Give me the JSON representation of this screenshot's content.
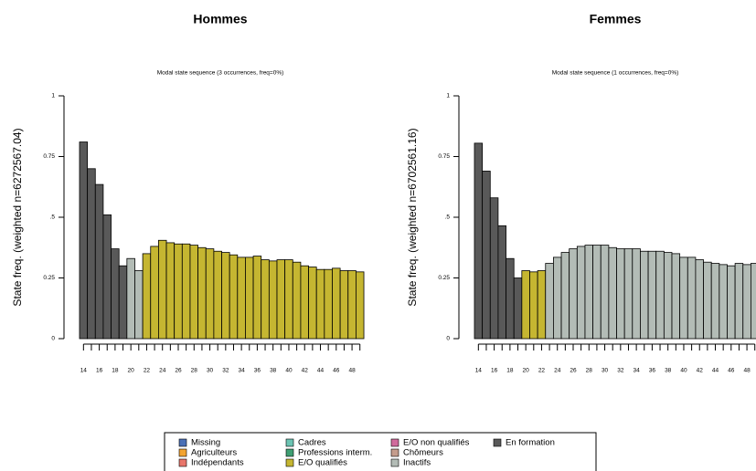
{
  "chart_data": [
    {
      "type": "bar",
      "title": "Hommes",
      "subtitle": "Modal state sequence (3 occurrences, freq=0%)",
      "ylabel": "State freq. (weighted n=6272567.04)",
      "categories": [
        "14",
        null,
        "16",
        null,
        "18",
        null,
        "20",
        null,
        "22",
        null,
        "24",
        null,
        "26",
        null,
        "28",
        null,
        "30",
        null,
        "32",
        null,
        "34",
        null,
        "36",
        null,
        "38",
        null,
        "40",
        null,
        "42",
        null,
        "44",
        null,
        "46",
        null,
        "48",
        null
      ],
      "values": [
        0.81,
        0.7,
        0.635,
        0.51,
        0.37,
        0.3,
        0.33,
        0.28,
        0.35,
        0.38,
        0.405,
        0.395,
        0.39,
        0.39,
        0.385,
        0.375,
        0.37,
        0.36,
        0.355,
        0.345,
        0.335,
        0.335,
        0.34,
        0.325,
        0.32,
        0.325,
        0.325,
        0.315,
        0.3,
        0.295,
        0.285,
        0.285,
        0.29,
        0.28,
        0.28,
        0.275
      ],
      "colors": [
        "#595959",
        "#595959",
        "#595959",
        "#595959",
        "#595959",
        "#595959",
        "#b3bcb6",
        "#b3bcb6",
        "#c5b631",
        "#c5b631",
        "#c5b631",
        "#c5b631",
        "#c5b631",
        "#c5b631",
        "#c5b631",
        "#c5b631",
        "#c5b631",
        "#c5b631",
        "#c5b631",
        "#c5b631",
        "#c5b631",
        "#c5b631",
        "#c5b631",
        "#c5b631",
        "#c5b631",
        "#c5b631",
        "#c5b631",
        "#c5b631",
        "#c5b631",
        "#c5b631",
        "#c5b631",
        "#c5b631",
        "#c5b631",
        "#c5b631",
        "#c5b631",
        "#c5b631"
      ],
      "ylim": [
        0,
        1
      ],
      "yticks": [
        0,
        0.25,
        {
          "value": 0.5,
          "label": ".5"
        },
        0.75,
        1
      ]
    },
    {
      "type": "bar",
      "title": "Femmes",
      "subtitle": "Modal state sequence (1 occurrences, freq=0%)",
      "ylabel": "State freq. (weighted n=6702561.16)",
      "categories": [
        "14",
        null,
        "16",
        null,
        "18",
        null,
        "20",
        null,
        "22",
        null,
        "24",
        null,
        "26",
        null,
        "28",
        null,
        "30",
        null,
        "32",
        null,
        "34",
        null,
        "36",
        null,
        "38",
        null,
        "40",
        null,
        "42",
        null,
        "44",
        null,
        "46",
        null,
        "48",
        null
      ],
      "values": [
        0.805,
        0.69,
        0.58,
        0.465,
        0.33,
        0.25,
        0.28,
        0.275,
        0.28,
        0.31,
        0.335,
        0.355,
        0.37,
        0.38,
        0.385,
        0.385,
        0.385,
        0.375,
        0.37,
        0.37,
        0.37,
        0.36,
        0.36,
        0.36,
        0.355,
        0.35,
        0.335,
        0.335,
        0.325,
        0.315,
        0.31,
        0.305,
        0.3,
        0.31,
        0.305,
        0.31
      ],
      "colors": [
        "#595959",
        "#595959",
        "#595959",
        "#595959",
        "#595959",
        "#595959",
        "#c5b631",
        "#c5b631",
        "#c5b631",
        "#b3bcb6",
        "#b3bcb6",
        "#b3bcb6",
        "#b3bcb6",
        "#b3bcb6",
        "#b3bcb6",
        "#b3bcb6",
        "#b3bcb6",
        "#b3bcb6",
        "#b3bcb6",
        "#b3bcb6",
        "#b3bcb6",
        "#b3bcb6",
        "#b3bcb6",
        "#b3bcb6",
        "#b3bcb6",
        "#b3bcb6",
        "#b3bcb6",
        "#b3bcb6",
        "#b3bcb6",
        "#b3bcb6",
        "#b3bcb6",
        "#b3bcb6",
        "#b3bcb6",
        "#b3bcb6",
        "#b3bcb6",
        "#b3bcb6"
      ],
      "ylim": [
        0,
        1
      ],
      "yticks": [
        0,
        0.25,
        {
          "value": 0.5,
          "label": ".5"
        },
        0.75,
        1
      ]
    }
  ],
  "legend": {
    "entries": [
      {
        "name": "Missing",
        "color": "#4a70b6"
      },
      {
        "name": "Agriculteurs",
        "color": "#f2a431"
      },
      {
        "name": "Indépendants",
        "color": "#e8766b"
      },
      {
        "name": "Cadres",
        "color": "#6cc4b3"
      },
      {
        "name": "Professions interm.",
        "color": "#3f9f74"
      },
      {
        "name": "E/O qualifiés",
        "color": "#c5b631"
      },
      {
        "name": "E/O non qualifiés",
        "color": "#d06b9c"
      },
      {
        "name": "Chômeurs",
        "color": "#c49c8c"
      },
      {
        "name": "Inactifs",
        "color": "#b3bcb6"
      },
      {
        "name": "En formation",
        "color": "#595959"
      }
    ]
  }
}
